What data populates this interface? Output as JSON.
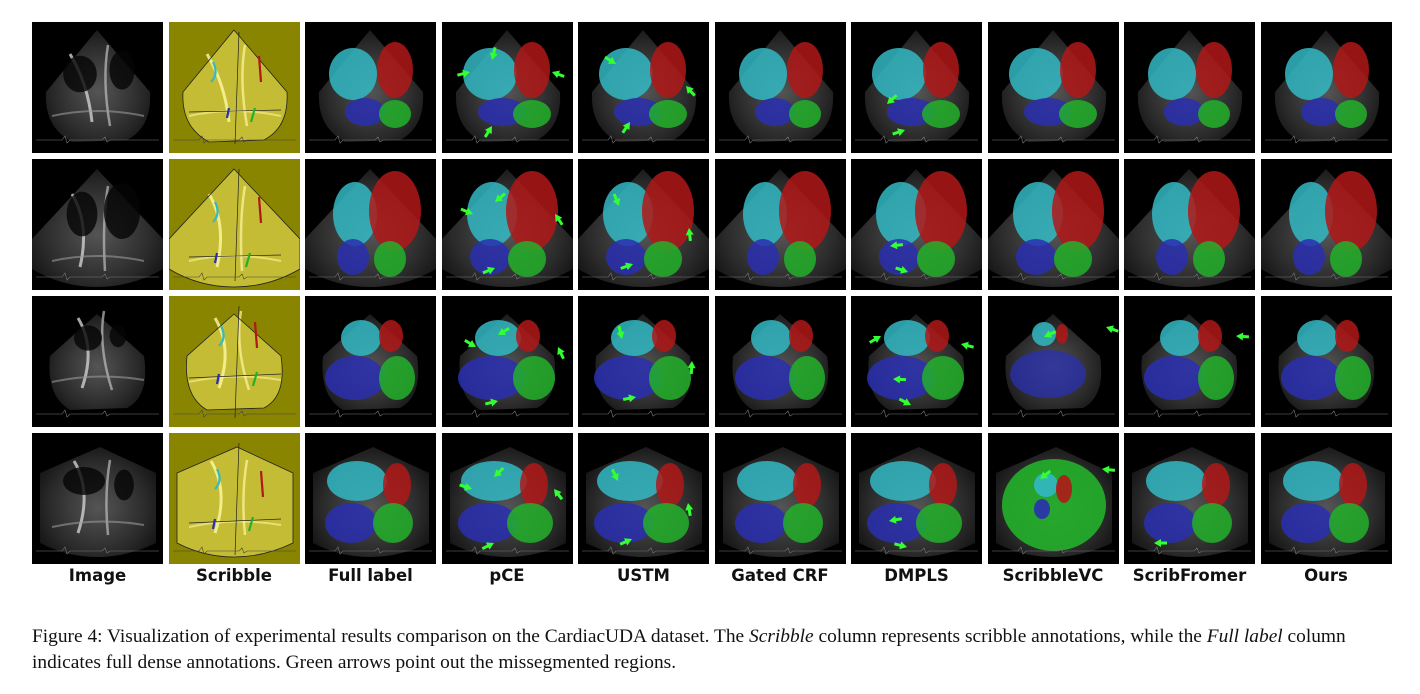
{
  "columns": [
    "Image",
    "Scribble",
    "Full label",
    "pCE",
    "USTM",
    "Gated CRF",
    "DMPLS",
    "ScribbleVC",
    "ScribFromer",
    "Ours"
  ],
  "rows": 4,
  "colors": {
    "background": "#000000",
    "cyan_region": "#33b8c4",
    "red_region": "#b01818",
    "blue_region": "#2a2fb0",
    "green_region": "#22b02a",
    "scribble_overlay": "#d6d23c",
    "arrow": "#33ff33"
  },
  "caption": {
    "part1": "Figure 4: Visualization of experimental results comparison on the CardiacUDA dataset. The ",
    "em1": "Scribble",
    "part2": " column represents scribble annotations, while the ",
    "em2": "Full label",
    "part3": " column indicates full dense annotations. Green arrows point out the missegmented regions."
  }
}
